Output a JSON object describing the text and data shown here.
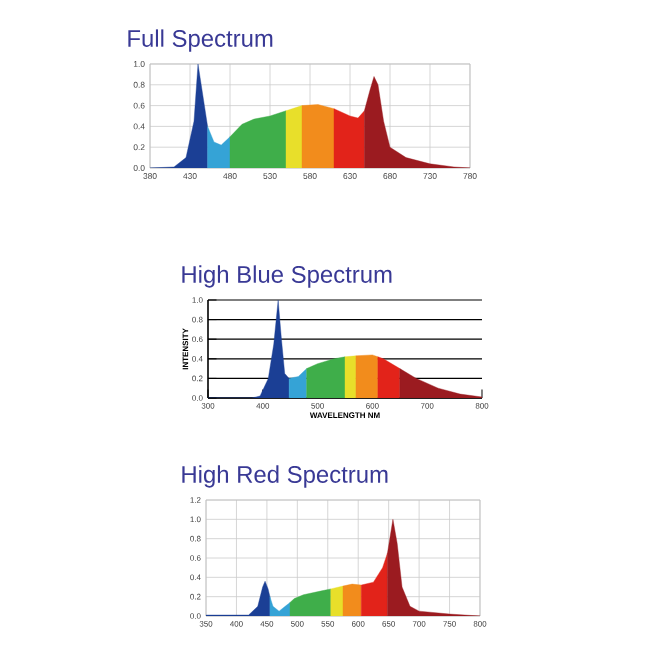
{
  "chart_data": [
    {
      "type": "area",
      "title": "Full Spectrum",
      "xlim": [
        380,
        780
      ],
      "ylim": [
        0,
        1.0
      ],
      "xticks": [
        380,
        430,
        480,
        530,
        580,
        630,
        680,
        730,
        780
      ],
      "yticks": [
        {
          "value": 0,
          "label": "0.0"
        },
        {
          "value": 0.2,
          "label": "0.2"
        },
        {
          "value": 0.4,
          "label": "0.4"
        },
        {
          "value": 0.6,
          "label": "0.6"
        },
        {
          "value": 0.8,
          "label": "0.8"
        },
        {
          "value": 1.0,
          "label": "1.0"
        }
      ],
      "grid": true,
      "series": [
        {
          "color": "#1b3f95",
          "x": [
            380,
            410,
            425,
            435,
            440,
            445,
            452
          ],
          "values": [
            0,
            0.01,
            0.1,
            0.45,
            1.0,
            0.75,
            0.4
          ]
        },
        {
          "color": "#35a3d6",
          "x": [
            452,
            460,
            469,
            480
          ],
          "values": [
            0.4,
            0.25,
            0.22,
            0.3
          ]
        },
        {
          "color": "#3fae4a",
          "x": [
            480,
            495,
            510,
            530,
            550
          ],
          "values": [
            0.3,
            0.42,
            0.47,
            0.5,
            0.55
          ]
        },
        {
          "color": "#e8df2a",
          "x": [
            550,
            570
          ],
          "values": [
            0.55,
            0.6
          ]
        },
        {
          "color": "#f28c1c",
          "x": [
            570,
            590,
            610
          ],
          "values": [
            0.6,
            0.61,
            0.57
          ]
        },
        {
          "color": "#e2231a",
          "x": [
            610,
            630,
            640,
            648
          ],
          "values": [
            0.57,
            0.5,
            0.48,
            0.55
          ]
        },
        {
          "color": "#9b1b20",
          "x": [
            648,
            655,
            660,
            665,
            672,
            680,
            700,
            730,
            760,
            780
          ],
          "values": [
            0.55,
            0.75,
            0.88,
            0.8,
            0.45,
            0.2,
            0.1,
            0.04,
            0.01,
            0
          ]
        }
      ]
    },
    {
      "type": "area",
      "title": "High Blue Spectrum",
      "xlabel": "WAVELENGTH NM",
      "ylabel": "INTENSITY",
      "xlim": [
        300,
        800
      ],
      "ylim": [
        0,
        1.0
      ],
      "xticks": [
        300,
        400,
        500,
        600,
        700,
        800
      ],
      "yticks": [
        {
          "value": 0,
          "label": "0.0"
        },
        {
          "value": 0.2,
          "label": "0.2"
        },
        {
          "value": 0.4,
          "label": "0.4"
        },
        {
          "value": 0.6,
          "label": "0.6"
        },
        {
          "value": 0.8,
          "label": "0.8"
        },
        {
          "value": 1.0,
          "label": "1.0"
        }
      ],
      "grid": "y",
      "series": [
        {
          "color": "#1b3f95",
          "x": [
            300,
            380,
            395,
            410,
            420,
            428,
            434,
            440,
            448
          ],
          "values": [
            0,
            0,
            0.02,
            0.2,
            0.55,
            1.0,
            0.6,
            0.25,
            0.2
          ]
        },
        {
          "color": "#35a3d6",
          "x": [
            448,
            465,
            480
          ],
          "values": [
            0.2,
            0.22,
            0.3
          ]
        },
        {
          "color": "#3fae4a",
          "x": [
            480,
            500,
            530,
            550
          ],
          "values": [
            0.3,
            0.35,
            0.4,
            0.42
          ]
        },
        {
          "color": "#e8df2a",
          "x": [
            550,
            570
          ],
          "values": [
            0.42,
            0.43
          ]
        },
        {
          "color": "#f28c1c",
          "x": [
            570,
            600,
            610
          ],
          "values": [
            0.43,
            0.44,
            0.42
          ]
        },
        {
          "color": "#e2231a",
          "x": [
            610,
            620,
            650
          ],
          "values": [
            0.42,
            0.4,
            0.3
          ]
        },
        {
          "color": "#9b1b20",
          "x": [
            650,
            680,
            720,
            760,
            800
          ],
          "values": [
            0.3,
            0.2,
            0.1,
            0.04,
            0.01
          ]
        }
      ]
    },
    {
      "type": "area",
      "title": "High Red Spectrum",
      "xlim": [
        350,
        800
      ],
      "ylim": [
        0,
        1.2
      ],
      "xticks": [
        350,
        400,
        450,
        500,
        550,
        600,
        650,
        700,
        750,
        800
      ],
      "yticks": [
        {
          "value": 0,
          "label": "0.0"
        },
        {
          "value": 0.2,
          "label": "0.2"
        },
        {
          "value": 0.4,
          "label": "0.4"
        },
        {
          "value": 0.6,
          "label": "0.6"
        },
        {
          "value": 0.8,
          "label": "0.8"
        },
        {
          "value": 1.0,
          "label": "1.0"
        },
        {
          "value": 1.2,
          "label": "1.2"
        }
      ],
      "grid": true,
      "series": [
        {
          "color": "#1b3f95",
          "x": [
            350,
            420,
            435,
            443,
            447,
            452,
            455
          ],
          "values": [
            0.01,
            0.01,
            0.1,
            0.3,
            0.36,
            0.28,
            0.2
          ]
        },
        {
          "color": "#35a3d6",
          "x": [
            455,
            460,
            470,
            480,
            488
          ],
          "values": [
            0.2,
            0.1,
            0.05,
            0.1,
            0.14
          ]
        },
        {
          "color": "#3fae4a",
          "x": [
            488,
            495,
            510,
            540,
            555
          ],
          "values": [
            0.14,
            0.18,
            0.22,
            0.26,
            0.28
          ]
        },
        {
          "color": "#e8df2a",
          "x": [
            555,
            575
          ],
          "values": [
            0.28,
            0.31
          ]
        },
        {
          "color": "#f28c1c",
          "x": [
            575,
            590,
            605
          ],
          "values": [
            0.31,
            0.33,
            0.32
          ]
        },
        {
          "color": "#e2231a",
          "x": [
            605,
            625,
            640,
            648
          ],
          "values": [
            0.32,
            0.35,
            0.5,
            0.65
          ]
        },
        {
          "color": "#9b1b20",
          "x": [
            648,
            657,
            664,
            672,
            685,
            700,
            750,
            800
          ],
          "values": [
            0.65,
            1.0,
            0.75,
            0.3,
            0.1,
            0.05,
            0.02,
            0
          ]
        }
      ]
    }
  ]
}
